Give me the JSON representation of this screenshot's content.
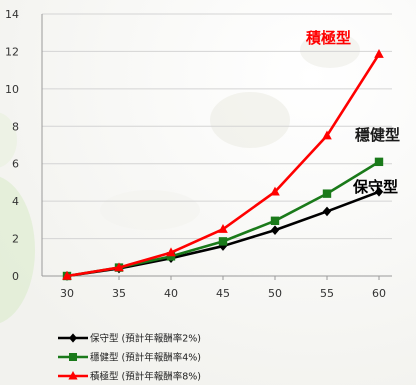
{
  "chart_data": {
    "type": "line",
    "x": [
      30,
      35,
      40,
      45,
      50,
      55,
      60
    ],
    "xlim": [
      30,
      60
    ],
    "ylim": [
      0,
      14
    ],
    "y_ticks": [
      0,
      2,
      4,
      6,
      8,
      10,
      12,
      14
    ],
    "grid": "horizontal",
    "legend_position": "bottom-left",
    "series": [
      {
        "name": "保守型 (預計年報酬率2%)",
        "label": "保守型",
        "color": "#000000",
        "marker": "diamond",
        "values": [
          0,
          0.4,
          0.95,
          1.6,
          2.45,
          3.45,
          4.5
        ]
      },
      {
        "name": "穩健型 (預計年報酬率4%)",
        "label": "穩健型",
        "color": "#1a7a1a",
        "marker": "square",
        "values": [
          0,
          0.45,
          1.05,
          1.85,
          2.95,
          4.4,
          6.1
        ]
      },
      {
        "name": "積極型 (預計年報酬率8%)",
        "label": "積極型",
        "color": "#ff0000",
        "marker": "triangle",
        "values": [
          0,
          0.45,
          1.25,
          2.5,
          4.5,
          7.5,
          11.85
        ]
      }
    ]
  }
}
